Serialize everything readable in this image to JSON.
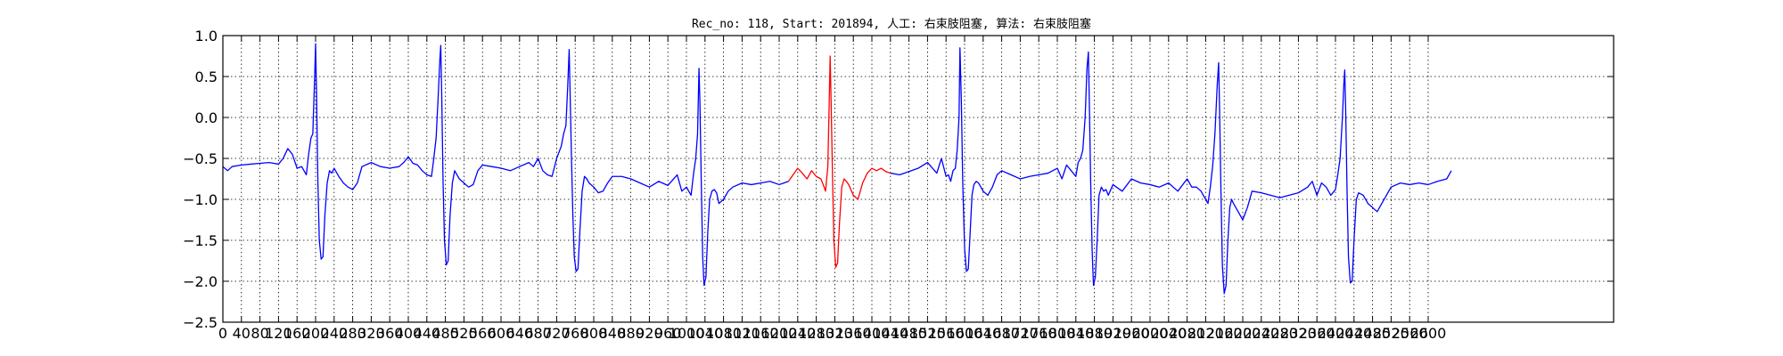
{
  "chart_data": {
    "type": "line",
    "title": "Rec_no: 118, Start: 201894, 人工: 右束肢阻塞, 算法: 右束肢阻塞",
    "xlabel": "",
    "ylabel": "",
    "xlim": [
      0,
      3000
    ],
    "ylim": [
      -2.5,
      1.0
    ],
    "yticks": [
      1.0,
      0.5,
      0.0,
      -0.5,
      -1.0,
      -1.5,
      -2.0,
      -2.5
    ],
    "ytick_labels": [
      "1.0",
      "0.5",
      "0.0",
      "−0.5",
      "−1.0",
      "−1.5",
      "−2.0",
      "−2.5"
    ],
    "xtick_step": 40,
    "xtick_max": 2600,
    "grid": true,
    "beats": [
      {
        "t": 200,
        "color": "#0000ff",
        "r": 0.9,
        "s": -1.75
      },
      {
        "t": 470,
        "color": "#0000ff",
        "r": 0.88,
        "s": -1.8
      },
      {
        "t": 747,
        "color": "#0000ff",
        "r": 0.83,
        "s": -1.88
      },
      {
        "t": 1027,
        "color": "#0000ff",
        "r": 0.6,
        "s": -2.05
      },
      {
        "t": 1310,
        "color": "#ff0000",
        "r": 0.75,
        "s": -1.83
      },
      {
        "t": 1588,
        "color": "#0000ff",
        "r": 0.85,
        "s": -1.88
      },
      {
        "t": 1867,
        "color": "#0000ff",
        "r": 0.8,
        "s": -2.05
      },
      {
        "t": 2148,
        "color": "#0000ff",
        "r": 0.67,
        "s": -2.15
      },
      {
        "t": 2420,
        "color": "#0000ff",
        "r": 0.58,
        "s": -2.02
      }
    ],
    "series": [
      {
        "color": "#0000ff",
        "x": [
          0,
          10,
          20,
          40,
          60,
          80,
          100,
          120,
          130,
          140,
          150,
          160,
          170,
          175,
          180,
          185,
          190,
          194,
          198,
          200,
          202,
          205,
          208,
          212,
          216,
          220,
          225,
          230,
          235,
          240,
          250,
          260,
          270,
          280,
          290,
          300,
          320,
          340,
          360,
          380,
          390,
          400,
          410,
          420,
          430,
          440,
          450,
          455,
          460,
          464,
          468,
          470,
          472,
          475,
          478,
          482,
          486,
          490,
          495,
          500,
          505,
          510,
          520,
          530,
          540,
          550,
          560,
          580,
          600,
          620,
          640,
          660,
          670,
          680,
          690,
          700,
          710,
          720,
          730,
          735,
          740,
          744,
          747,
          749,
          752,
          755,
          758,
          762,
          766,
          770,
          775,
          780,
          785,
          790,
          800,
          810,
          820,
          830,
          840,
          860,
          880,
          900,
          920,
          940,
          960,
          980,
          990,
          1000,
          1010,
          1015,
          1020,
          1024,
          1027,
          1029,
          1032,
          1035,
          1038,
          1042,
          1046,
          1050,
          1055,
          1060,
          1065,
          1070,
          1080,
          1090,
          1100,
          1120,
          1140,
          1160,
          1180,
          1200,
          1210,
          1220
        ],
        "y": [
          -0.6,
          -0.65,
          -0.6,
          -0.58,
          -0.57,
          -0.56,
          -0.55,
          -0.57,
          -0.5,
          -0.38,
          -0.45,
          -0.62,
          -0.6,
          -0.65,
          -0.7,
          -0.45,
          -0.25,
          -0.2,
          0.5,
          0.9,
          0.3,
          -0.8,
          -1.5,
          -1.73,
          -1.7,
          -1.2,
          -0.8,
          -0.65,
          -0.68,
          -0.62,
          -0.72,
          -0.8,
          -0.85,
          -0.88,
          -0.8,
          -0.6,
          -0.55,
          -0.6,
          -0.62,
          -0.6,
          -0.55,
          -0.48,
          -0.56,
          -0.58,
          -0.65,
          -0.7,
          -0.72,
          -0.5,
          -0.25,
          0.2,
          0.7,
          0.88,
          0.3,
          -0.8,
          -1.5,
          -1.8,
          -1.75,
          -1.2,
          -0.8,
          -0.65,
          -0.7,
          -0.75,
          -0.8,
          -0.85,
          -0.82,
          -0.65,
          -0.58,
          -0.6,
          -0.62,
          -0.65,
          -0.6,
          -0.55,
          -0.6,
          -0.5,
          -0.65,
          -0.7,
          -0.72,
          -0.5,
          -0.35,
          -0.2,
          -0.1,
          0.4,
          0.83,
          0.3,
          -0.5,
          -1.2,
          -1.7,
          -1.88,
          -1.85,
          -1.4,
          -0.9,
          -0.72,
          -0.75,
          -0.8,
          -0.85,
          -0.92,
          -0.9,
          -0.8,
          -0.72,
          -0.72,
          -0.75,
          -0.8,
          -0.85,
          -0.78,
          -0.83,
          -0.7,
          -0.9,
          -0.85,
          -0.95,
          -0.7,
          -0.5,
          -0.2,
          0.6,
          0.2,
          -0.8,
          -1.7,
          -2.05,
          -1.95,
          -1.4,
          -1.0,
          -0.9,
          -0.88,
          -0.92,
          -1.05,
          -1.0,
          -0.9,
          -0.85,
          -0.8,
          -0.82,
          -0.8,
          -0.78,
          -0.82,
          -0.8,
          -0.78
        ]
      },
      {
        "color": "#ff0000",
        "x": [
          1220,
          1230,
          1240,
          1250,
          1260,
          1270,
          1280,
          1290,
          1295,
          1300,
          1305,
          1308,
          1310,
          1312,
          1315,
          1318,
          1322,
          1326,
          1330,
          1335,
          1340,
          1345,
          1350,
          1360,
          1370,
          1380,
          1390,
          1400,
          1410,
          1420,
          1430,
          1440
        ],
        "y": [
          -0.78,
          -0.7,
          -0.62,
          -0.68,
          -0.75,
          -0.65,
          -0.72,
          -0.75,
          -0.82,
          -0.9,
          -0.6,
          0.2,
          0.75,
          0.2,
          -0.7,
          -1.5,
          -1.83,
          -1.78,
          -1.3,
          -0.85,
          -0.75,
          -0.78,
          -0.82,
          -0.95,
          -1.0,
          -0.8,
          -0.68,
          -0.62,
          -0.65,
          -0.62,
          -0.66,
          -0.68
        ]
      },
      {
        "color": "#0000ff",
        "x": [
          1440,
          1460,
          1480,
          1500,
          1520,
          1540,
          1550,
          1560,
          1565,
          1570,
          1575,
          1580,
          1584,
          1588,
          1590,
          1593,
          1596,
          1600,
          1604,
          1608,
          1612,
          1616,
          1620,
          1625,
          1630,
          1640,
          1650,
          1660,
          1670,
          1680,
          1700,
          1720,
          1740,
          1760,
          1780,
          1800,
          1810,
          1820,
          1830,
          1840,
          1845,
          1850,
          1855,
          1860,
          1864,
          1867,
          1869,
          1872,
          1875,
          1878,
          1882,
          1886,
          1890,
          1895,
          1900,
          1905,
          1910,
          1920,
          1940,
          1960,
          1980,
          2000,
          2020,
          2040,
          2060,
          2080,
          2090,
          2100,
          2110,
          2120,
          2125,
          2130,
          2135,
          2140,
          2145,
          2148,
          2150,
          2153,
          2156,
          2160,
          2164,
          2168,
          2172,
          2176,
          2180,
          2190,
          2200,
          2210,
          2220,
          2240,
          2260,
          2280,
          2300,
          2320,
          2340,
          2350,
          2360,
          2370,
          2380,
          2390,
          2400,
          2405,
          2410,
          2415,
          2418,
          2420,
          2422,
          2425,
          2428,
          2432,
          2436,
          2440,
          2445,
          2450,
          2460,
          2470,
          2480,
          2490,
          2500,
          2520,
          2540,
          2560,
          2580,
          2600,
          2620,
          2640,
          2650
        ],
        "y": [
          -0.68,
          -0.7,
          -0.66,
          -0.62,
          -0.55,
          -0.68,
          -0.5,
          -0.72,
          -0.7,
          -0.78,
          -0.65,
          -0.62,
          -0.4,
          0.0,
          0.85,
          0.2,
          -0.8,
          -1.6,
          -1.88,
          -1.85,
          -1.4,
          -0.95,
          -0.82,
          -0.78,
          -0.8,
          -0.9,
          -0.95,
          -0.85,
          -0.7,
          -0.65,
          -0.7,
          -0.75,
          -0.72,
          -0.7,
          -0.68,
          -0.62,
          -0.75,
          -0.58,
          -0.65,
          -0.72,
          -0.55,
          -0.5,
          -0.4,
          0.0,
          0.6,
          0.8,
          0.2,
          -0.8,
          -1.6,
          -2.05,
          -1.95,
          -1.5,
          -0.95,
          -0.85,
          -0.9,
          -0.88,
          -0.95,
          -0.82,
          -0.9,
          -0.75,
          -0.8,
          -0.82,
          -0.85,
          -0.8,
          -0.9,
          -0.75,
          -0.85,
          -0.85,
          -0.9,
          -1.0,
          -1.05,
          -0.85,
          -0.6,
          -0.2,
          0.4,
          0.67,
          0.1,
          -0.9,
          -1.8,
          -2.15,
          -2.05,
          -1.5,
          -1.1,
          -1.0,
          -1.05,
          -1.15,
          -1.25,
          -1.1,
          -0.9,
          -0.92,
          -0.95,
          -0.98,
          -0.95,
          -0.92,
          -0.85,
          -0.78,
          -0.95,
          -0.8,
          -0.85,
          -0.95,
          -0.88,
          -0.7,
          -0.5,
          0.0,
          0.4,
          0.58,
          0.1,
          -0.9,
          -1.7,
          -2.02,
          -2.0,
          -1.5,
          -1.0,
          -0.92,
          -0.95,
          -1.05,
          -1.1,
          -1.15,
          -1.05,
          -0.85,
          -0.8,
          -0.82,
          -0.8,
          -0.82,
          -0.78,
          -0.75,
          -0.65
        ]
      }
    ]
  }
}
